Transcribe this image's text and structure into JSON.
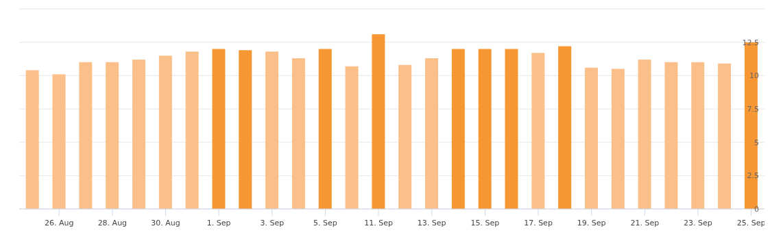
{
  "chart_data": {
    "type": "bar",
    "categories": [
      null,
      "26. Aug",
      null,
      "28. Aug",
      null,
      "30. Aug",
      null,
      "1. Sep",
      null,
      "3. Sep",
      null,
      "5. Sep",
      null,
      "11. Sep",
      null,
      "13. Sep",
      null,
      "15. Sep",
      null,
      "17. Sep",
      null,
      "19. Sep",
      null,
      "21. Sep",
      null,
      "23. Sep",
      null,
      "25. Sep"
    ],
    "values": [
      10.4,
      10.1,
      11.0,
      11.0,
      11.2,
      11.5,
      11.8,
      12.0,
      11.9,
      11.8,
      11.3,
      12.0,
      10.7,
      13.1,
      10.8,
      11.3,
      12.0,
      12.0,
      12.0,
      11.7,
      12.2,
      10.6,
      10.5,
      11.2,
      11.0,
      11.0,
      10.9,
      12.5
    ],
    "colors": [
      "#fbc08a",
      "#fbc08a",
      "#fbc08a",
      "#fbc08a",
      "#fbc08a",
      "#fbc08a",
      "#fbc08a",
      "#f79733",
      "#f79733",
      "#fbc08a",
      "#fbc08a",
      "#f79733",
      "#fbc08a",
      "#f79733",
      "#fbc08a",
      "#fbc08a",
      "#f79733",
      "#f79733",
      "#f79733",
      "#fbc08a",
      "#f79733",
      "#fbc08a",
      "#fbc08a",
      "#fbc08a",
      "#fbc08a",
      "#fbc08a",
      "#fbc08a",
      "#f79733"
    ],
    "ylim": [
      0,
      15
    ],
    "yticks": [
      0,
      2.5,
      5,
      7.5,
      10,
      12.5,
      {
        "value": 15,
        "label": null
      }
    ],
    "grid": "y"
  }
}
